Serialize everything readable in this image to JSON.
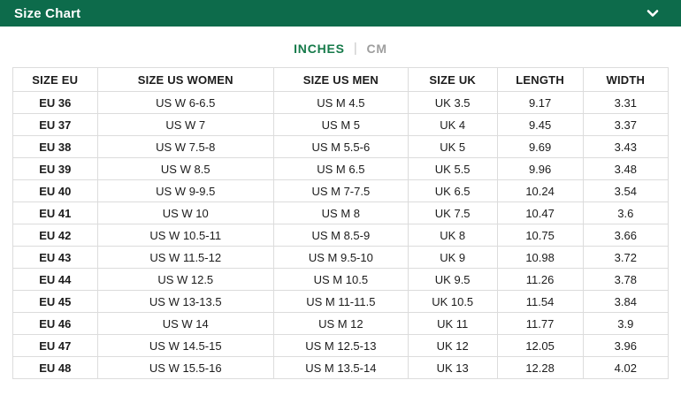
{
  "header": {
    "title": "Size Chart",
    "background_color": "#0d6b4b",
    "chevron_icon": "chevron-down"
  },
  "unit_toggle": {
    "separator": "|",
    "active_color": "#167a4a",
    "inactive_color": "#9e9e9e",
    "options": [
      {
        "label": "INCHES",
        "active": true
      },
      {
        "label": "CM",
        "active": false
      }
    ]
  },
  "table": {
    "columns": [
      "SIZE EU",
      "SIZE US WOMEN",
      "SIZE US MEN",
      "SIZE UK",
      "LENGTH",
      "WIDTH"
    ],
    "rows": [
      [
        "EU 36",
        "US W 6-6.5",
        "US M 4.5",
        "UK 3.5",
        "9.17",
        "3.31"
      ],
      [
        "EU 37",
        "US W 7",
        "US M 5",
        "UK 4",
        "9.45",
        "3.37"
      ],
      [
        "EU 38",
        "US W 7.5-8",
        "US M 5.5-6",
        "UK 5",
        "9.69",
        "3.43"
      ],
      [
        "EU 39",
        "US W 8.5",
        "US M 6.5",
        "UK 5.5",
        "9.96",
        "3.48"
      ],
      [
        "EU 40",
        "US W 9-9.5",
        "US M 7-7.5",
        "UK 6.5",
        "10.24",
        "3.54"
      ],
      [
        "EU 41",
        "US W 10",
        "US M 8",
        "UK 7.5",
        "10.47",
        "3.6"
      ],
      [
        "EU 42",
        "US W 10.5-11",
        "US M 8.5-9",
        "UK 8",
        "10.75",
        "3.66"
      ],
      [
        "EU 43",
        "US W 11.5-12",
        "US M 9.5-10",
        "UK 9",
        "10.98",
        "3.72"
      ],
      [
        "EU 44",
        "US W 12.5",
        "US M 10.5",
        "UK 9.5",
        "11.26",
        "3.78"
      ],
      [
        "EU 45",
        "US W 13-13.5",
        "US M 11-11.5",
        "UK 10.5",
        "11.54",
        "3.84"
      ],
      [
        "EU 46",
        "US W 14",
        "US M 12",
        "UK 11",
        "11.77",
        "3.9"
      ],
      [
        "EU 47",
        "US W 14.5-15",
        "US M 12.5-13",
        "UK 12",
        "12.05",
        "3.96"
      ],
      [
        "EU 48",
        "US W 15.5-16",
        "US M 13.5-14",
        "UK 13",
        "12.28",
        "4.02"
      ]
    ]
  }
}
